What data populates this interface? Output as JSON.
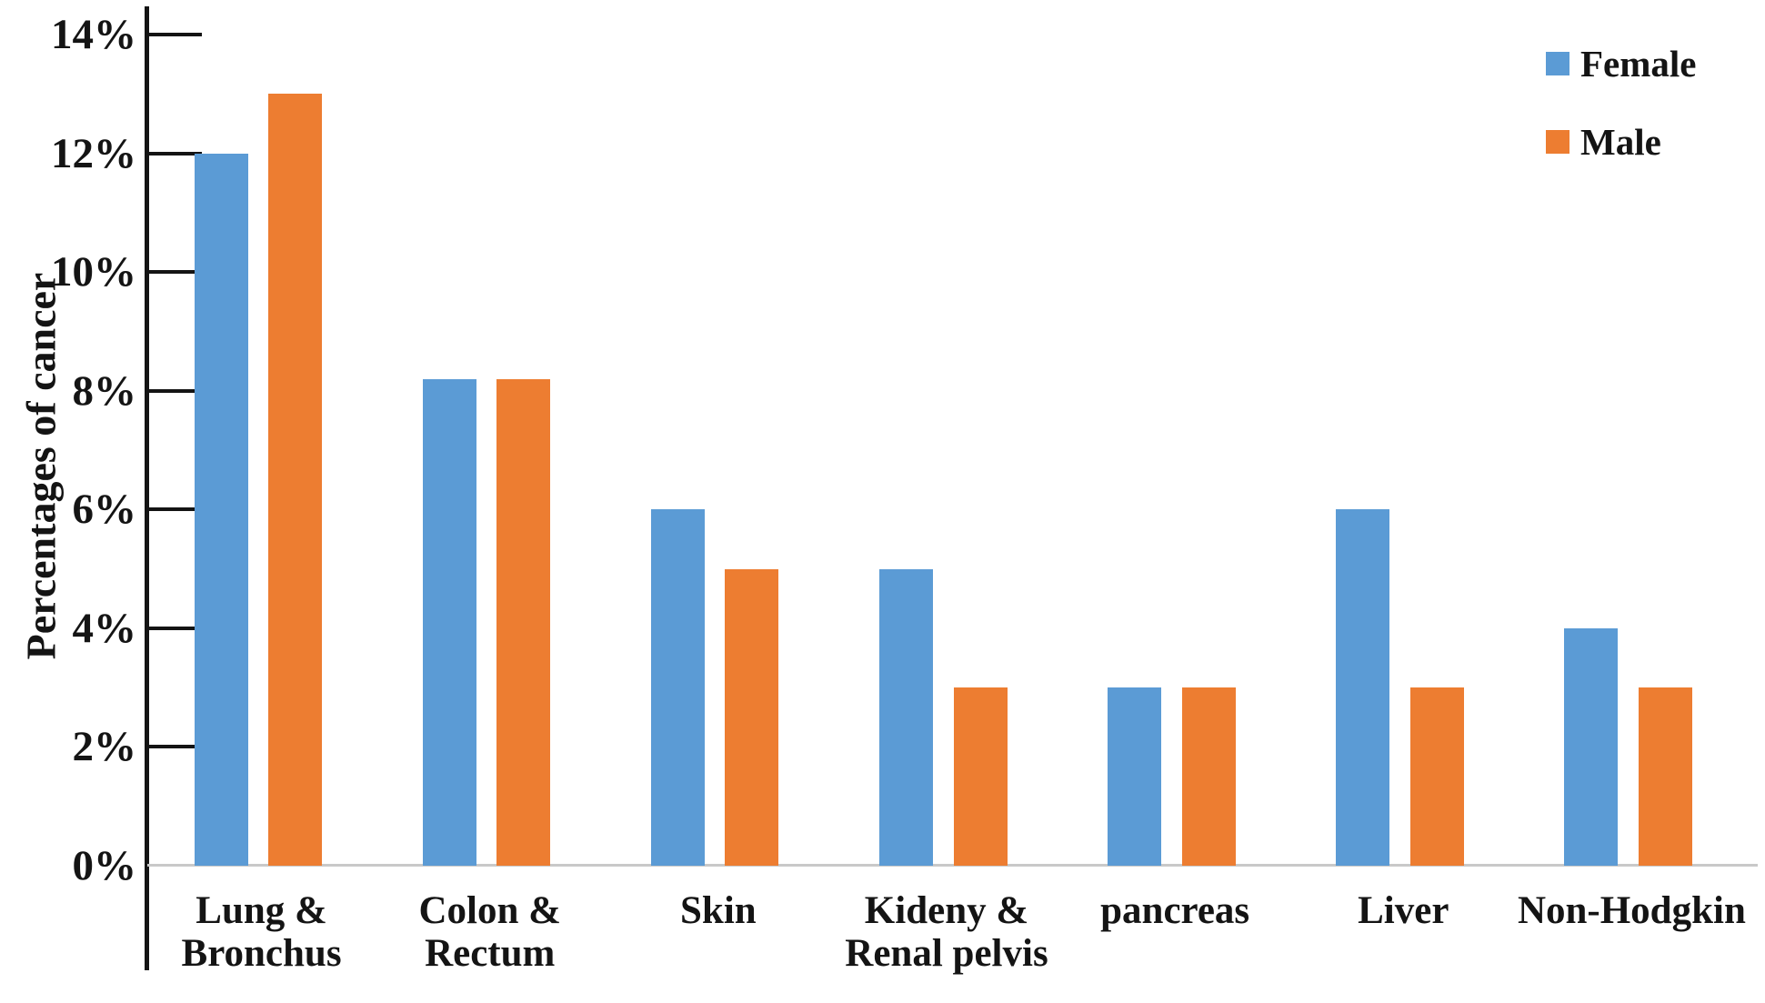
{
  "chart_data": {
    "type": "bar",
    "title": "",
    "xlabel": "",
    "ylabel": "Percentages of cancer",
    "ylim": [
      0,
      14
    ],
    "grid": false,
    "legend_position": "top-right",
    "yticks": [
      {
        "value": 0,
        "label": "0%"
      },
      {
        "value": 2,
        "label": "2%"
      },
      {
        "value": 4,
        "label": "4%"
      },
      {
        "value": 6,
        "label": "6%"
      },
      {
        "value": 8,
        "label": "8%"
      },
      {
        "value": 10,
        "label": "10%"
      },
      {
        "value": 12,
        "label": "12%"
      },
      {
        "value": 14,
        "label": "14%"
      }
    ],
    "categories": [
      {
        "lines": [
          "Lung &",
          "Bronchus"
        ]
      },
      {
        "lines": [
          "Colon &",
          "Rectum"
        ]
      },
      {
        "lines": [
          "Skin"
        ]
      },
      {
        "lines": [
          "Kideny &",
          "Renal pelvis"
        ]
      },
      {
        "lines": [
          "pancreas"
        ]
      },
      {
        "lines": [
          "Liver"
        ]
      },
      {
        "lines": [
          "Non-Hodgkin"
        ]
      }
    ],
    "series": [
      {
        "name": "Female",
        "color": "#5B9BD5",
        "values": [
          12,
          8.2,
          6,
          5,
          3,
          6,
          4
        ]
      },
      {
        "name": "Male",
        "color": "#ED7D31",
        "values": [
          13,
          8.2,
          5,
          3,
          3,
          3,
          3
        ]
      }
    ],
    "colors": {
      "axis": "#141414",
      "baseline": "#c9c9c9",
      "background": "#ffffff"
    }
  }
}
